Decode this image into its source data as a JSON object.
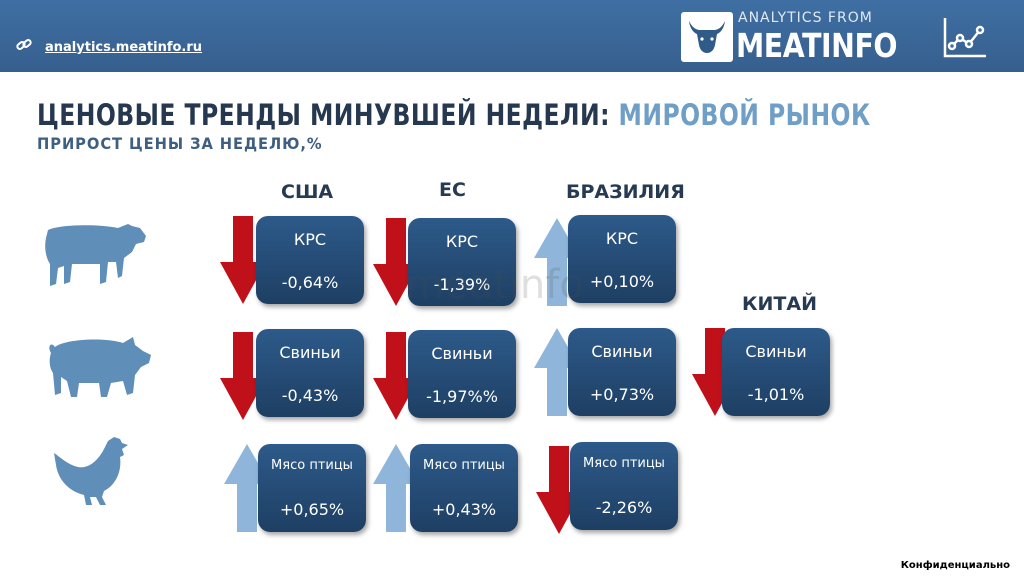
{
  "header": {
    "link": "analytics.meatinfo.ru",
    "logo_small": "ANALYTICS FROM",
    "logo_big": "MEATINFO",
    "icons": [
      "link-icon",
      "bull-logo-icon",
      "line-chart-icon"
    ]
  },
  "title": {
    "main": "ЦЕНОВЫЕ ТРЕНДЫ МИНУВШЕЙ НЕДЕЛИ:",
    "accent": "МИРОВОЙ РЫНОК",
    "subtitle": "ПРИРОСТ ЦЕНЫ ЗА НЕДЕЛЮ,%"
  },
  "columns": {
    "usa": "США",
    "eu": "ЕС",
    "brazil": "БРАЗИЛИЯ",
    "china": "КИТАЙ"
  },
  "animals": [
    "cow-icon",
    "pig-icon",
    "chicken-icon"
  ],
  "cards": {
    "usa_beef": {
      "category": "КРС",
      "value": "-0,64%",
      "trend": "down"
    },
    "eu_beef": {
      "category": "КРС",
      "value": "-1,39%",
      "trend": "down"
    },
    "brazil_beef": {
      "category": "КРС",
      "value": "+0,10%",
      "trend": "up"
    },
    "usa_pork": {
      "category": "Свиньи",
      "value": "-0,43%",
      "trend": "down"
    },
    "eu_pork": {
      "category": "Свиньи",
      "value": "-1,97%%",
      "trend": "down"
    },
    "brazil_pork": {
      "category": "Свиньи",
      "value": "+0,73%",
      "trend": "up"
    },
    "china_pork": {
      "category": "Свиньи",
      "value": "-1,01%",
      "trend": "down"
    },
    "usa_poultry": {
      "category": "Мясо птицы",
      "value": "+0,65%",
      "trend": "up"
    },
    "eu_poultry": {
      "category": "Мясо птицы",
      "value": "+0,43%",
      "trend": "up"
    },
    "brazil_poultry": {
      "category": "Мясо птицы",
      "value": "-2,26%",
      "trend": "down"
    }
  },
  "colors": {
    "header": "#3f6fa3",
    "card": "#2d5a8a",
    "down_arrow": "#c0101a",
    "up_arrow": "#8fb6da",
    "title": "#26384f",
    "accent": "#6f9fc6"
  },
  "watermark": "meatinfo",
  "footer": "Конфиденциально"
}
